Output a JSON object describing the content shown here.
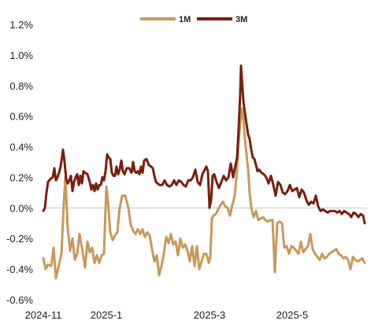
{
  "chart_data": {
    "type": "line",
    "title": "",
    "xlabel": "",
    "ylabel": "",
    "ylim": [
      -0.6,
      1.2
    ],
    "y_unit": "%",
    "y_ticks": [
      "1.2%",
      "1.0%",
      "0.8%",
      "0.6%",
      "0.4%",
      "0.2%",
      "0.0%",
      "-0.2%",
      "-0.4%",
      "-0.6%"
    ],
    "y_tick_values": [
      1.2,
      1.0,
      0.8,
      0.6,
      0.4,
      0.2,
      0.0,
      -0.2,
      -0.4,
      -0.6
    ],
    "x_ticks": [
      "2024-11",
      "2025-1",
      "2025-3",
      "2025-5"
    ],
    "x_tick_values": [
      0,
      80,
      211,
      316
    ],
    "x_max": 410,
    "legend_position": "top-center",
    "grid": false,
    "series": [
      {
        "name": "1M",
        "color": "#C9995A",
        "points": [
          [
            0,
            -0.33
          ],
          [
            3,
            -0.4
          ],
          [
            6,
            -0.37
          ],
          [
            10,
            -0.38
          ],
          [
            13,
            -0.26
          ],
          [
            16,
            -0.46
          ],
          [
            20,
            -0.37
          ],
          [
            23,
            -0.3
          ],
          [
            26,
            0.03
          ],
          [
            28,
            0.2
          ],
          [
            31,
            -0.13
          ],
          [
            34,
            -0.28
          ],
          [
            37,
            -0.2
          ],
          [
            40,
            -0.34
          ],
          [
            43,
            -0.3
          ],
          [
            46,
            -0.17
          ],
          [
            49,
            -0.26
          ],
          [
            53,
            -0.39
          ],
          [
            56,
            -0.22
          ],
          [
            59,
            -0.29
          ],
          [
            62,
            -0.26
          ],
          [
            65,
            -0.36
          ],
          [
            68,
            -0.31
          ],
          [
            71,
            -0.36
          ],
          [
            74,
            -0.31
          ],
          [
            77,
            -0.3
          ],
          [
            80,
            0.14
          ],
          [
            82,
            0.05
          ],
          [
            85,
            -0.16
          ],
          [
            88,
            -0.21
          ],
          [
            91,
            -0.18
          ],
          [
            94,
            -0.16
          ],
          [
            97,
            0.0
          ],
          [
            100,
            0.08
          ],
          [
            104,
            0.08
          ],
          [
            108,
            0.0
          ],
          [
            111,
            -0.11
          ],
          [
            114,
            -0.15
          ],
          [
            117,
            -0.17
          ],
          [
            120,
            -0.14
          ],
          [
            123,
            -0.17
          ],
          [
            126,
            -0.14
          ],
          [
            129,
            -0.19
          ],
          [
            132,
            -0.16
          ],
          [
            135,
            -0.18
          ],
          [
            138,
            -0.27
          ],
          [
            141,
            -0.35
          ],
          [
            144,
            -0.31
          ],
          [
            147,
            -0.44
          ],
          [
            150,
            -0.38
          ],
          [
            153,
            -0.3
          ],
          [
            156,
            -0.19
          ],
          [
            159,
            -0.23
          ],
          [
            162,
            -0.17
          ],
          [
            165,
            -0.24
          ],
          [
            168,
            -0.22
          ],
          [
            171,
            -0.31
          ],
          [
            174,
            -0.2
          ],
          [
            177,
            -0.26
          ],
          [
            180,
            -0.24
          ],
          [
            183,
            -0.28
          ],
          [
            186,
            -0.35
          ],
          [
            189,
            -0.25
          ],
          [
            192,
            -0.38
          ],
          [
            195,
            -0.25
          ],
          [
            198,
            -0.4
          ],
          [
            201,
            -0.35
          ],
          [
            204,
            -0.3
          ],
          [
            207,
            -0.3
          ],
          [
            210,
            -0.36
          ],
          [
            212,
            -0.32
          ],
          [
            214,
            -0.07
          ],
          [
            216,
            -0.05
          ],
          [
            219,
            -0.04
          ],
          [
            222,
            -0.01
          ],
          [
            225,
            0.02
          ],
          [
            228,
            0.04
          ],
          [
            231,
            0.01
          ],
          [
            234,
            0.0
          ],
          [
            237,
            -0.05
          ],
          [
            240,
            0.02
          ],
          [
            243,
            0.08
          ],
          [
            246,
            0.25
          ],
          [
            248,
            0.43
          ],
          [
            250,
            0.55
          ],
          [
            252,
            0.65
          ],
          [
            254,
            0.58
          ],
          [
            256,
            0.45
          ],
          [
            258,
            0.35
          ],
          [
            260,
            0.25
          ],
          [
            262,
            0.1
          ],
          [
            264,
            0.0
          ],
          [
            267,
            -0.06
          ],
          [
            270,
            -0.02
          ],
          [
            273,
            -0.08
          ],
          [
            276,
            -0.07
          ],
          [
            279,
            -0.06
          ],
          [
            282,
            -0.08
          ],
          [
            285,
            -0.09
          ],
          [
            288,
            -0.08
          ],
          [
            291,
            -0.08
          ],
          [
            294,
            -0.42
          ],
          [
            297,
            -0.1
          ],
          [
            300,
            -0.09
          ],
          [
            303,
            -0.1
          ],
          [
            306,
            -0.26
          ],
          [
            309,
            -0.25
          ],
          [
            312,
            -0.3
          ],
          [
            315,
            -0.25
          ],
          [
            318,
            -0.26
          ],
          [
            321,
            -0.28
          ],
          [
            324,
            -0.3
          ],
          [
            327,
            -0.22
          ],
          [
            330,
            -0.29
          ],
          [
            333,
            -0.27
          ],
          [
            336,
            -0.25
          ],
          [
            339,
            -0.17
          ],
          [
            342,
            -0.27
          ],
          [
            345,
            -0.3
          ],
          [
            348,
            -0.32
          ],
          [
            351,
            -0.34
          ],
          [
            354,
            -0.3
          ],
          [
            357,
            -0.33
          ],
          [
            360,
            -0.32
          ],
          [
            363,
            -0.3
          ],
          [
            366,
            -0.29
          ],
          [
            369,
            -0.28
          ],
          [
            372,
            -0.27
          ],
          [
            375,
            -0.3
          ],
          [
            378,
            -0.31
          ],
          [
            381,
            -0.33
          ],
          [
            384,
            -0.32
          ],
          [
            387,
            -0.34
          ],
          [
            390,
            -0.4
          ],
          [
            393,
            -0.32
          ],
          [
            396,
            -0.34
          ],
          [
            399,
            -0.35
          ],
          [
            402,
            -0.34
          ],
          [
            405,
            -0.33
          ],
          [
            408,
            -0.36
          ]
        ]
      },
      {
        "name": "3M",
        "color": "#7A1E0E",
        "points": [
          [
            0,
            -0.02
          ],
          [
            2,
            0.0
          ],
          [
            4,
            0.1
          ],
          [
            6,
            0.17
          ],
          [
            9,
            0.19
          ],
          [
            12,
            0.2
          ],
          [
            14,
            0.26
          ],
          [
            16,
            0.18
          ],
          [
            18,
            0.2
          ],
          [
            20,
            0.23
          ],
          [
            22,
            0.27
          ],
          [
            24,
            0.34
          ],
          [
            25,
            0.38
          ],
          [
            27,
            0.3
          ],
          [
            29,
            0.19
          ],
          [
            31,
            0.16
          ],
          [
            33,
            0.18
          ],
          [
            35,
            0.21
          ],
          [
            37,
            0.11
          ],
          [
            39,
            0.17
          ],
          [
            41,
            0.2
          ],
          [
            43,
            0.22
          ],
          [
            45,
            0.15
          ],
          [
            47,
            0.21
          ],
          [
            49,
            0.16
          ],
          [
            51,
            0.24
          ],
          [
            53,
            0.23
          ],
          [
            56,
            0.22
          ],
          [
            59,
            0.17
          ],
          [
            61,
            0.12
          ],
          [
            63,
            0.15
          ],
          [
            65,
            0.11
          ],
          [
            67,
            0.16
          ],
          [
            69,
            0.12
          ],
          [
            71,
            0.15
          ],
          [
            73,
            0.15
          ],
          [
            75,
            0.2
          ],
          [
            77,
            0.18
          ],
          [
            79,
            0.24
          ],
          [
            81,
            0.35
          ],
          [
            83,
            0.33
          ],
          [
            85,
            0.32
          ],
          [
            87,
            0.23
          ],
          [
            89,
            0.21
          ],
          [
            91,
            0.21
          ],
          [
            93,
            0.27
          ],
          [
            95,
            0.22
          ],
          [
            97,
            0.25
          ],
          [
            99,
            0.31
          ],
          [
            101,
            0.24
          ],
          [
            103,
            0.22
          ],
          [
            106,
            0.26
          ],
          [
            109,
            0.26
          ],
          [
            112,
            0.23
          ],
          [
            114,
            0.3
          ],
          [
            116,
            0.24
          ],
          [
            118,
            0.23
          ],
          [
            120,
            0.24
          ],
          [
            122,
            0.22
          ],
          [
            124,
            0.27
          ],
          [
            126,
            0.23
          ],
          [
            128,
            0.31
          ],
          [
            131,
            0.32
          ],
          [
            134,
            0.28
          ],
          [
            137,
            0.27
          ],
          [
            139,
            0.26
          ],
          [
            141,
            0.21
          ],
          [
            143,
            0.17
          ],
          [
            145,
            0.16
          ],
          [
            148,
            0.15
          ],
          [
            151,
            0.15
          ],
          [
            154,
            0.18
          ],
          [
            157,
            0.15
          ],
          [
            160,
            0.14
          ],
          [
            163,
            0.15
          ],
          [
            166,
            0.18
          ],
          [
            169,
            0.15
          ],
          [
            172,
            0.18
          ],
          [
            175,
            0.17
          ],
          [
            178,
            0.15
          ],
          [
            181,
            0.14
          ],
          [
            184,
            0.18
          ],
          [
            187,
            0.18
          ],
          [
            190,
            0.2
          ],
          [
            193,
            0.25
          ],
          [
            196,
            0.17
          ],
          [
            199,
            0.15
          ],
          [
            202,
            0.22
          ],
          [
            205,
            0.25
          ],
          [
            207,
            0.27
          ],
          [
            209,
            0.24
          ],
          [
            211,
            0.0
          ],
          [
            213,
            0.05
          ],
          [
            215,
            0.21
          ],
          [
            217,
            0.22
          ],
          [
            220,
            0.17
          ],
          [
            223,
            0.13
          ],
          [
            226,
            0.17
          ],
          [
            229,
            0.21
          ],
          [
            232,
            0.18
          ],
          [
            235,
            0.2
          ],
          [
            238,
            0.29
          ],
          [
            241,
            0.2
          ],
          [
            244,
            0.28
          ],
          [
            246,
            0.33
          ],
          [
            248,
            0.52
          ],
          [
            250,
            0.75
          ],
          [
            251,
            0.93
          ],
          [
            252,
            0.85
          ],
          [
            254,
            0.7
          ],
          [
            256,
            0.62
          ],
          [
            258,
            0.55
          ],
          [
            260,
            0.48
          ],
          [
            262,
            0.45
          ],
          [
            264,
            0.38
          ],
          [
            266,
            0.33
          ],
          [
            268,
            0.32
          ],
          [
            270,
            0.28
          ],
          [
            272,
            0.24
          ],
          [
            274,
            0.25
          ],
          [
            277,
            0.23
          ],
          [
            280,
            0.22
          ],
          [
            283,
            0.2
          ],
          [
            286,
            0.16
          ],
          [
            289,
            0.21
          ],
          [
            292,
            0.15
          ],
          [
            295,
            0.08
          ],
          [
            298,
            0.17
          ],
          [
            301,
            0.15
          ],
          [
            304,
            0.1
          ],
          [
            307,
            0.09
          ],
          [
            310,
            0.11
          ],
          [
            313,
            0.15
          ],
          [
            316,
            0.11
          ],
          [
            319,
            0.12
          ],
          [
            322,
            0.13
          ],
          [
            325,
            0.07
          ],
          [
            328,
            0.12
          ],
          [
            331,
            0.1
          ],
          [
            334,
            0.05
          ],
          [
            337,
            0.02
          ],
          [
            340,
            0.04
          ],
          [
            343,
            0.03
          ],
          [
            346,
            0.08
          ],
          [
            349,
            0.01
          ],
          [
            352,
            -0.02
          ],
          [
            355,
            -0.01
          ],
          [
            358,
            -0.02
          ],
          [
            361,
            -0.03
          ],
          [
            364,
            -0.02
          ],
          [
            367,
            -0.02
          ],
          [
            370,
            -0.02
          ],
          [
            373,
            -0.03
          ],
          [
            376,
            -0.02
          ],
          [
            379,
            -0.04
          ],
          [
            382,
            -0.02
          ],
          [
            385,
            -0.03
          ],
          [
            388,
            -0.04
          ],
          [
            391,
            -0.06
          ],
          [
            394,
            -0.03
          ],
          [
            397,
            -0.04
          ],
          [
            400,
            -0.06
          ],
          [
            403,
            -0.04
          ],
          [
            406,
            -0.05
          ],
          [
            408,
            -0.1
          ]
        ]
      }
    ]
  }
}
